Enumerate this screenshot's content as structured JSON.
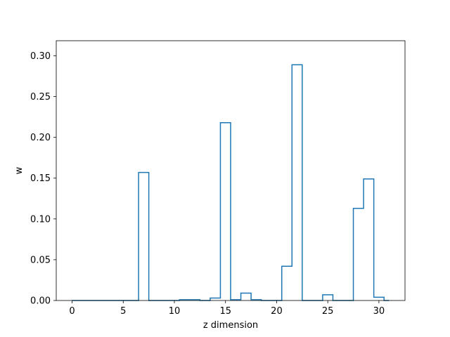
{
  "chart_data": {
    "type": "step",
    "title": "",
    "xlabel": "z dimension",
    "ylabel": "w",
    "xlim": [
      -1.55,
      32.55
    ],
    "ylim": [
      0,
      0.3185
    ],
    "grid": false,
    "line_color": "#1f77b4",
    "x_ticks": [
      0,
      5,
      10,
      15,
      20,
      25,
      30
    ],
    "x_tick_labels": [
      "0",
      "5",
      "10",
      "15",
      "20",
      "25",
      "30"
    ],
    "y_ticks": [
      0.0,
      0.05,
      0.1,
      0.15,
      0.2,
      0.25,
      0.3
    ],
    "y_tick_labels": [
      "0.00",
      "0.05",
      "0.10",
      "0.15",
      "0.20",
      "0.25",
      "0.30"
    ],
    "x": [
      0,
      1,
      2,
      3,
      4,
      5,
      6,
      7,
      8,
      9,
      10,
      11,
      12,
      13,
      14,
      15,
      16,
      17,
      18,
      19,
      20,
      21,
      22,
      23,
      24,
      25,
      26,
      27,
      28,
      29,
      30,
      31
    ],
    "values": [
      0,
      0,
      0,
      0,
      0,
      0,
      0,
      0.157,
      0,
      0,
      0,
      0.001,
      0.001,
      0,
      0.003,
      0.218,
      0.001,
      0.009,
      0.001,
      0,
      0,
      0.042,
      0.289,
      0,
      0,
      0.007,
      0,
      0,
      0.113,
      0.149,
      0.004,
      0
    ]
  }
}
